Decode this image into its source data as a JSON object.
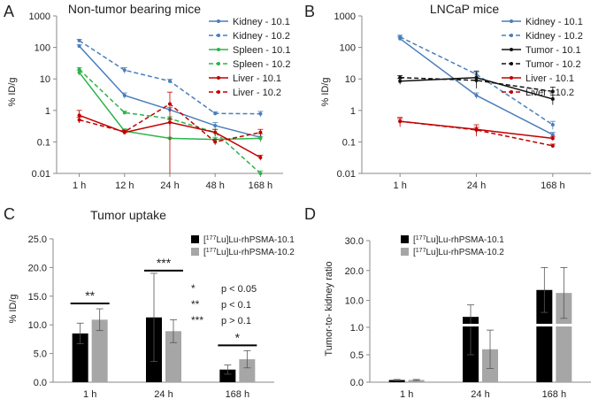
{
  "chart_data": [
    {
      "panel": "A",
      "type": "line",
      "title": "Non-tumor bearing mice",
      "ylabel": "% ID/g",
      "yscale": "log",
      "ylim": [
        0.01,
        1000
      ],
      "yticks": [
        "0.01",
        "0.1",
        "1",
        "10",
        "100",
        "1000"
      ],
      "categories": [
        "1 h",
        "12 h",
        "24 h",
        "48 h",
        "168 h"
      ],
      "series": [
        {
          "name": "Kidney - 10.1",
          "color": "#4a7ebb",
          "dash": false,
          "values": [
            110,
            3.0,
            1.05,
            0.33,
            0.14
          ],
          "err": [
            12,
            0.6,
            0.2,
            0.08,
            0.04
          ]
        },
        {
          "name": "Kidney - 10.2",
          "color": "#4a7ebb",
          "dash": true,
          "values": [
            165,
            19,
            8.5,
            0.8,
            0.78
          ],
          "err": [
            15,
            4,
            1.2,
            0.1,
            0.15
          ]
        },
        {
          "name": "Spleen - 10.1",
          "color": "#2db34a",
          "dash": false,
          "values": [
            16,
            0.22,
            0.13,
            0.12,
            0.13
          ],
          "err": [
            3,
            0.04,
            0.01,
            0.02,
            0.02
          ]
        },
        {
          "name": "Spleen - 10.2",
          "color": "#2db34a",
          "dash": true,
          "values": [
            20,
            0.85,
            0.55,
            0.2,
            0.01
          ],
          "err": [
            3,
            0.1,
            0.08,
            0.05,
            0.002
          ]
        },
        {
          "name": "Liver - 10.1",
          "color": "#c00000",
          "dash": false,
          "values": [
            0.7,
            0.2,
            0.42,
            0.2,
            0.032
          ],
          "err": [
            0.3,
            0.03,
            0.1,
            0.05,
            0.006
          ]
        },
        {
          "name": "Liver - 10.2",
          "color": "#c00000",
          "dash": true,
          "values": [
            0.5,
            0.21,
            1.6,
            0.1,
            0.2
          ],
          "err": [
            0.1,
            0.03,
            2.2,
            0.02,
            0.05
          ]
        }
      ]
    },
    {
      "panel": "B",
      "type": "line",
      "title": "LNCaP mice",
      "ylabel": "% ID/g",
      "yscale": "log",
      "ylim": [
        0.01,
        1000
      ],
      "yticks": [
        "0.01",
        "0.1",
        "1",
        "10",
        "100",
        "1000"
      ],
      "categories": [
        "1 h",
        "24 h",
        "168 h"
      ],
      "series": [
        {
          "name": "Kidney - 10.1",
          "color": "#4a7ebb",
          "dash": false,
          "values": [
            190,
            3.0,
            0.17
          ],
          "err": [
            25,
            0.6,
            0.03
          ]
        },
        {
          "name": "Kidney - 10.2",
          "color": "#4a7ebb",
          "dash": true,
          "values": [
            215,
            14,
            0.35
          ],
          "err": [
            30,
            4,
            0.1
          ]
        },
        {
          "name": "Tumor - 10.1",
          "color": "#111111",
          "dash": false,
          "values": [
            8.5,
            11,
            2.3
          ],
          "err": [
            1.8,
            6,
            0.8
          ]
        },
        {
          "name": "Tumor - 10.2",
          "color": "#111111",
          "dash": true,
          "values": [
            11,
            9,
            4.0
          ],
          "err": [
            1.8,
            1.8,
            1.5
          ]
        },
        {
          "name": "Liver - 10.1",
          "color": "#c00000",
          "dash": false,
          "values": [
            0.45,
            0.25,
            0.13
          ],
          "err": [
            0.15,
            0.1,
            0.02
          ]
        },
        {
          "name": "Liver - 10.2",
          "color": "#c00000",
          "dash": true,
          "values": [
            0.45,
            0.24,
            0.075
          ],
          "err": [
            0.1,
            0.05,
            0.01
          ]
        }
      ]
    },
    {
      "panel": "C",
      "type": "bar",
      "title": "Tumor uptake",
      "ylabel": "% ID/g",
      "ylim": [
        0,
        25
      ],
      "yticks": [
        "0.0",
        "5.0",
        "10.0",
        "15.0",
        "20.0",
        "25.0"
      ],
      "categories": [
        "1 h",
        "24 h",
        "168 h"
      ],
      "series": [
        {
          "name_prefix": "[",
          "name_sup": "177",
          "name_suffix": "Lu]Lu-rhPSMA-10.1",
          "color": "#000000",
          "values": [
            8.5,
            11.3,
            2.2
          ],
          "err": [
            1.8,
            7.7,
            0.8
          ]
        },
        {
          "name_prefix": "[",
          "name_sup": "177",
          "name_suffix": "Lu]Lu-rhPSMA-10.2",
          "color": "#a6a6a6",
          "values": [
            10.9,
            8.9,
            4.0
          ],
          "err": [
            1.9,
            2.0,
            1.5
          ]
        }
      ],
      "significance": [
        {
          "category": "1 h",
          "label": "**"
        },
        {
          "category": "24 h",
          "label": "***"
        },
        {
          "category": "168 h",
          "label": "*"
        }
      ],
      "legend_notes": [
        {
          "stars": "*",
          "text": "p < 0.05"
        },
        {
          "stars": "**",
          "text": "p < 0.1"
        },
        {
          "stars": "***",
          "text": "p > 0.1"
        }
      ]
    },
    {
      "panel": "D",
      "type": "bar",
      "title": "",
      "ylabel": "Tumor-to- kidney ratio",
      "yscale": "broken",
      "yticks": [
        "0.0",
        "0.5",
        "1.0",
        "10.0",
        "20.0",
        "30.0"
      ],
      "categories": [
        "1 h",
        "24 h",
        "168 h"
      ],
      "series": [
        {
          "name_prefix": "[",
          "name_sup": "177",
          "name_suffix": "Lu]Lu-rhPSMA-10.1",
          "color": "#000000",
          "values": [
            0.04,
            4.5,
            13.5
          ],
          "err": [
            0.01,
            4.0,
            7.5
          ]
        },
        {
          "name_prefix": "[",
          "name_sup": "177",
          "name_suffix": "Lu]Lu-rhPSMA-10.2",
          "color": "#a6a6a6",
          "values": [
            0.04,
            0.6,
            12.5
          ],
          "err": [
            0.01,
            0.35,
            8.5
          ]
        }
      ]
    }
  ]
}
